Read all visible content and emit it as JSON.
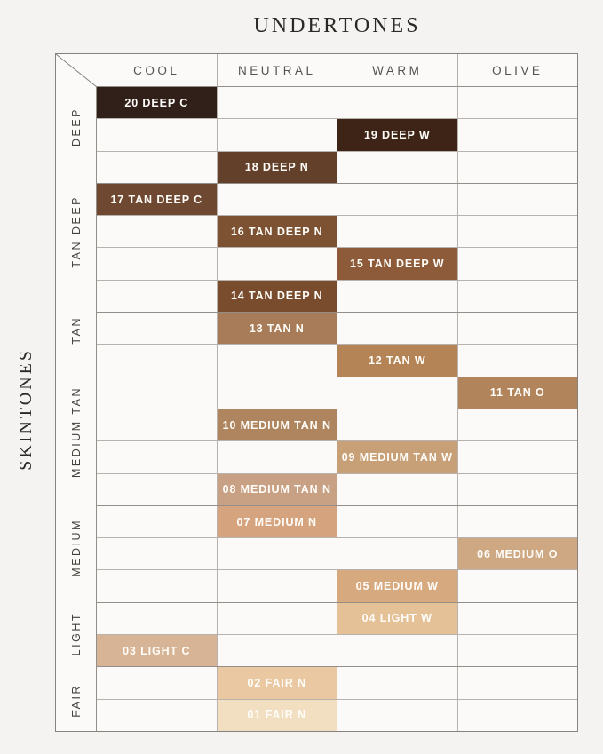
{
  "title": "UNDERTONES",
  "side_label": "SKINTONES",
  "columns": [
    "COOL",
    "NEUTRAL",
    "WARM",
    "OLIVE"
  ],
  "groups": [
    {
      "label": "DEEP",
      "rows": 3
    },
    {
      "label": "TAN DEEP",
      "rows": 4
    },
    {
      "label": "TAN",
      "rows": 3
    },
    {
      "label": "MEDIUM TAN",
      "rows": 3
    },
    {
      "label": "MEDIUM",
      "rows": 3
    },
    {
      "label": "LIGHT",
      "rows": 2
    },
    {
      "label": "FAIR",
      "rows": 2
    }
  ],
  "shades": [
    {
      "row": 0,
      "col": 0,
      "label": "20 DEEP C",
      "color": "#31201a"
    },
    {
      "row": 1,
      "col": 2,
      "label": "19 DEEP W",
      "color": "#3d2417"
    },
    {
      "row": 2,
      "col": 1,
      "label": "18 DEEP N",
      "color": "#63402a"
    },
    {
      "row": 3,
      "col": 0,
      "label": "17 TAN DEEP C",
      "color": "#6e4831"
    },
    {
      "row": 4,
      "col": 1,
      "label": "16 TAN DEEP N",
      "color": "#7d5233"
    },
    {
      "row": 5,
      "col": 2,
      "label": "15 TAN DEEP W",
      "color": "#8d5b39"
    },
    {
      "row": 6,
      "col": 1,
      "label": "14 TAN DEEP N",
      "color": "#794c2d"
    },
    {
      "row": 7,
      "col": 1,
      "label": "13 TAN N",
      "color": "#a87c58"
    },
    {
      "row": 8,
      "col": 2,
      "label": "12 TAN W",
      "color": "#b48456"
    },
    {
      "row": 9,
      "col": 3,
      "label": "11 TAN O",
      "color": "#b2845c"
    },
    {
      "row": 10,
      "col": 1,
      "label": "10 MEDIUM TAN N",
      "color": "#af8560"
    },
    {
      "row": 11,
      "col": 2,
      "label": "09 MEDIUM TAN W",
      "color": "#c8a077"
    },
    {
      "row": 12,
      "col": 1,
      "label": "08 MEDIUM TAN N",
      "color": "#c8a185"
    },
    {
      "row": 13,
      "col": 1,
      "label": "07 MEDIUM N",
      "color": "#d5a47e"
    },
    {
      "row": 14,
      "col": 3,
      "label": "06 MEDIUM O",
      "color": "#cda882"
    },
    {
      "row": 15,
      "col": 2,
      "label": "05 MEDIUM W",
      "color": "#d7a97f"
    },
    {
      "row": 16,
      "col": 2,
      "label": "04 LIGHT W",
      "color": "#e5c198"
    },
    {
      "row": 17,
      "col": 0,
      "label": "03 LIGHT C",
      "color": "#d6b495"
    },
    {
      "row": 18,
      "col": 1,
      "label": "02 FAIR N",
      "color": "#e9c8a2"
    },
    {
      "row": 19,
      "col": 1,
      "label": "01 FAIR N",
      "color": "#f2dfc2"
    }
  ],
  "colors": {
    "page_bg": "#f5f3f1",
    "cell_bg": "#fbfaf9",
    "outer_border": "#87827c",
    "grid_line": "#b7b2ad",
    "group_line": "#938e88",
    "header_text": "#55534f",
    "title_text": "#2b2926",
    "shade_text": "#fffdf9"
  },
  "chart_data": {
    "type": "heatmap",
    "title": "UNDERTONES",
    "x_axis_label": "UNDERTONES",
    "y_axis_label": "SKINTONES",
    "x_categories": [
      "COOL",
      "NEUTRAL",
      "WARM",
      "OLIVE"
    ],
    "y_categories": [
      "DEEP",
      "TAN DEEP",
      "TAN",
      "MEDIUM TAN",
      "MEDIUM",
      "LIGHT",
      "FAIR"
    ],
    "legend_position": "none",
    "grid": true,
    "cells": [
      {
        "shade": "20 DEEP C",
        "undertone": "COOL",
        "skintone": "DEEP",
        "color": "#31201a"
      },
      {
        "shade": "19 DEEP W",
        "undertone": "WARM",
        "skintone": "DEEP",
        "color": "#3d2417"
      },
      {
        "shade": "18 DEEP N",
        "undertone": "NEUTRAL",
        "skintone": "DEEP",
        "color": "#63402a"
      },
      {
        "shade": "17 TAN DEEP C",
        "undertone": "COOL",
        "skintone": "TAN DEEP",
        "color": "#6e4831"
      },
      {
        "shade": "16 TAN DEEP N",
        "undertone": "NEUTRAL",
        "skintone": "TAN DEEP",
        "color": "#7d5233"
      },
      {
        "shade": "15 TAN DEEP W",
        "undertone": "WARM",
        "skintone": "TAN DEEP",
        "color": "#8d5b39"
      },
      {
        "shade": "14 TAN DEEP N",
        "undertone": "NEUTRAL",
        "skintone": "TAN DEEP",
        "color": "#794c2d"
      },
      {
        "shade": "13 TAN N",
        "undertone": "NEUTRAL",
        "skintone": "TAN",
        "color": "#a87c58"
      },
      {
        "shade": "12 TAN W",
        "undertone": "WARM",
        "skintone": "TAN",
        "color": "#b48456"
      },
      {
        "shade": "11 TAN O",
        "undertone": "OLIVE",
        "skintone": "TAN",
        "color": "#b2845c"
      },
      {
        "shade": "10 MEDIUM TAN N",
        "undertone": "NEUTRAL",
        "skintone": "MEDIUM TAN",
        "color": "#af8560"
      },
      {
        "shade": "09 MEDIUM TAN W",
        "undertone": "WARM",
        "skintone": "MEDIUM TAN",
        "color": "#c8a077"
      },
      {
        "shade": "08 MEDIUM TAN N",
        "undertone": "NEUTRAL",
        "skintone": "MEDIUM TAN",
        "color": "#c8a185"
      },
      {
        "shade": "07 MEDIUM N",
        "undertone": "NEUTRAL",
        "skintone": "MEDIUM",
        "color": "#d5a47e"
      },
      {
        "shade": "06 MEDIUM O",
        "undertone": "OLIVE",
        "skintone": "MEDIUM",
        "color": "#cda882"
      },
      {
        "shade": "05 MEDIUM W",
        "undertone": "WARM",
        "skintone": "MEDIUM",
        "color": "#d7a97f"
      },
      {
        "shade": "04 LIGHT W",
        "undertone": "WARM",
        "skintone": "LIGHT",
        "color": "#e5c198"
      },
      {
        "shade": "03 LIGHT C",
        "undertone": "COOL",
        "skintone": "LIGHT",
        "color": "#d6b495"
      },
      {
        "shade": "02 FAIR N",
        "undertone": "NEUTRAL",
        "skintone": "FAIR",
        "color": "#e9c8a2"
      },
      {
        "shade": "01 FAIR N",
        "undertone": "NEUTRAL",
        "skintone": "FAIR",
        "color": "#f2dfc2"
      }
    ]
  }
}
